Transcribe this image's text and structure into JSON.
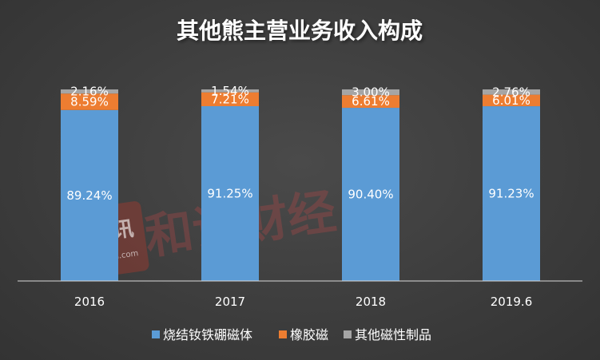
{
  "chart_data": {
    "type": "bar",
    "stacked": true,
    "title": "其他熊主营业务收入构成",
    "categories": [
      "2016",
      "2017",
      "2018",
      "2019.6"
    ],
    "series": [
      {
        "name": "烧结钕铁硼磁体",
        "color": "#5b9bd5",
        "values": [
          89.24,
          91.25,
          90.4,
          91.23
        ],
        "labels": [
          "89.24%",
          "91.25%",
          "90.40%",
          "91.23%"
        ]
      },
      {
        "name": "橡胶磁",
        "color": "#ed7d31",
        "values": [
          8.59,
          7.21,
          6.61,
          6.01
        ],
        "labels": [
          "8.59%",
          "7.21%",
          "6.61%",
          "6.01%"
        ]
      },
      {
        "name": "其他磁性制品",
        "color": "#a5a5a5",
        "values": [
          2.16,
          1.54,
          3.0,
          2.76
        ],
        "labels": [
          "2.16%",
          "1.54%",
          "3.00%",
          "2.76%"
        ]
      }
    ],
    "ylim": [
      0,
      100
    ],
    "grid": false,
    "legend": "bottom"
  },
  "watermark": {
    "text": "和讯财经",
    "logo_text": "和讯",
    "logo_sub": "hexun.com",
    "color": "#c0392b"
  }
}
